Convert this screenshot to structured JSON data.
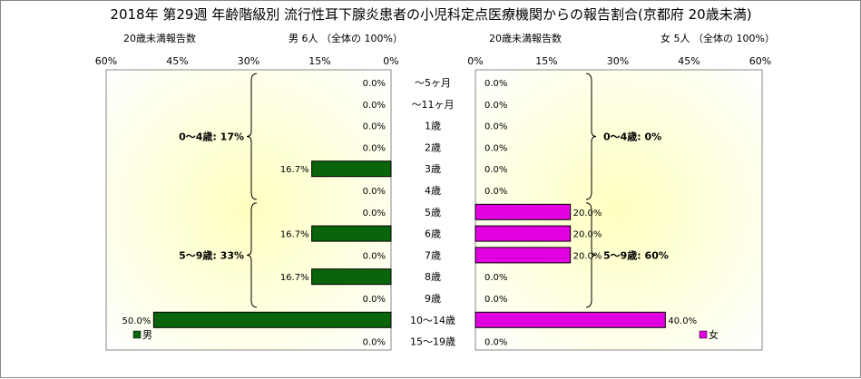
{
  "chart_data": {
    "type": "bar",
    "title": "2018年 第29週 年齢階級別 流行性耳下腺炎患者の小児科定点医療機関からの報告割合(京都府 20歳未満)",
    "categories": [
      "～5ヶ月",
      "～11ヶ月",
      "1歳",
      "2歳",
      "3歳",
      "4歳",
      "5歳",
      "6歳",
      "7歳",
      "8歳",
      "9歳",
      "10～14歳",
      "15～19歳"
    ],
    "left_panel": {
      "subtitle_left": "20歳未満報告数",
      "subtitle_right": "男 6人 （全体の 100%）",
      "axis_ticks": [
        "60%",
        "45%",
        "30%",
        "15%",
        "0%"
      ],
      "xlim": [
        0,
        60
      ],
      "legend": "男",
      "color": "#0a640a",
      "values": [
        0,
        0,
        0,
        0,
        16.7,
        0,
        0,
        16.7,
        0,
        16.7,
        0,
        50.0,
        0
      ],
      "value_labels": [
        "0.0%",
        "0.0%",
        "0.0%",
        "0.0%",
        "16.7%",
        "0.0%",
        "0.0%",
        "16.7%",
        "0.0%",
        "16.7%",
        "0.0%",
        "50.0%",
        "0.0%"
      ],
      "brackets": [
        {
          "label": "0～4歳: 17%",
          "from": 0,
          "to": 5
        },
        {
          "label": "5～9歳: 33%",
          "from": 6,
          "to": 10
        }
      ]
    },
    "right_panel": {
      "subtitle_left": "20歳未満報告数",
      "subtitle_right": "女 5人 （全体の 100%）",
      "axis_ticks": [
        "0%",
        "15%",
        "30%",
        "45%",
        "60%"
      ],
      "xlim": [
        0,
        60
      ],
      "legend": "女",
      "color": "#e000e0",
      "values": [
        0,
        0,
        0,
        0,
        0,
        0,
        20.0,
        20.0,
        20.0,
        0,
        0,
        40.0,
        0
      ],
      "value_labels": [
        "0.0%",
        "0.0%",
        "0.0%",
        "0.0%",
        "0.0%",
        "0.0%",
        "20.0%",
        "20.0%",
        "20.0%",
        "0.0%",
        "0.0%",
        "40.0%",
        "0.0%"
      ],
      "brackets": [
        {
          "label": "0～4歳: 0%",
          "from": 0,
          "to": 5
        },
        {
          "label": "5～9歳: 60%",
          "from": 6,
          "to": 10
        }
      ]
    }
  }
}
